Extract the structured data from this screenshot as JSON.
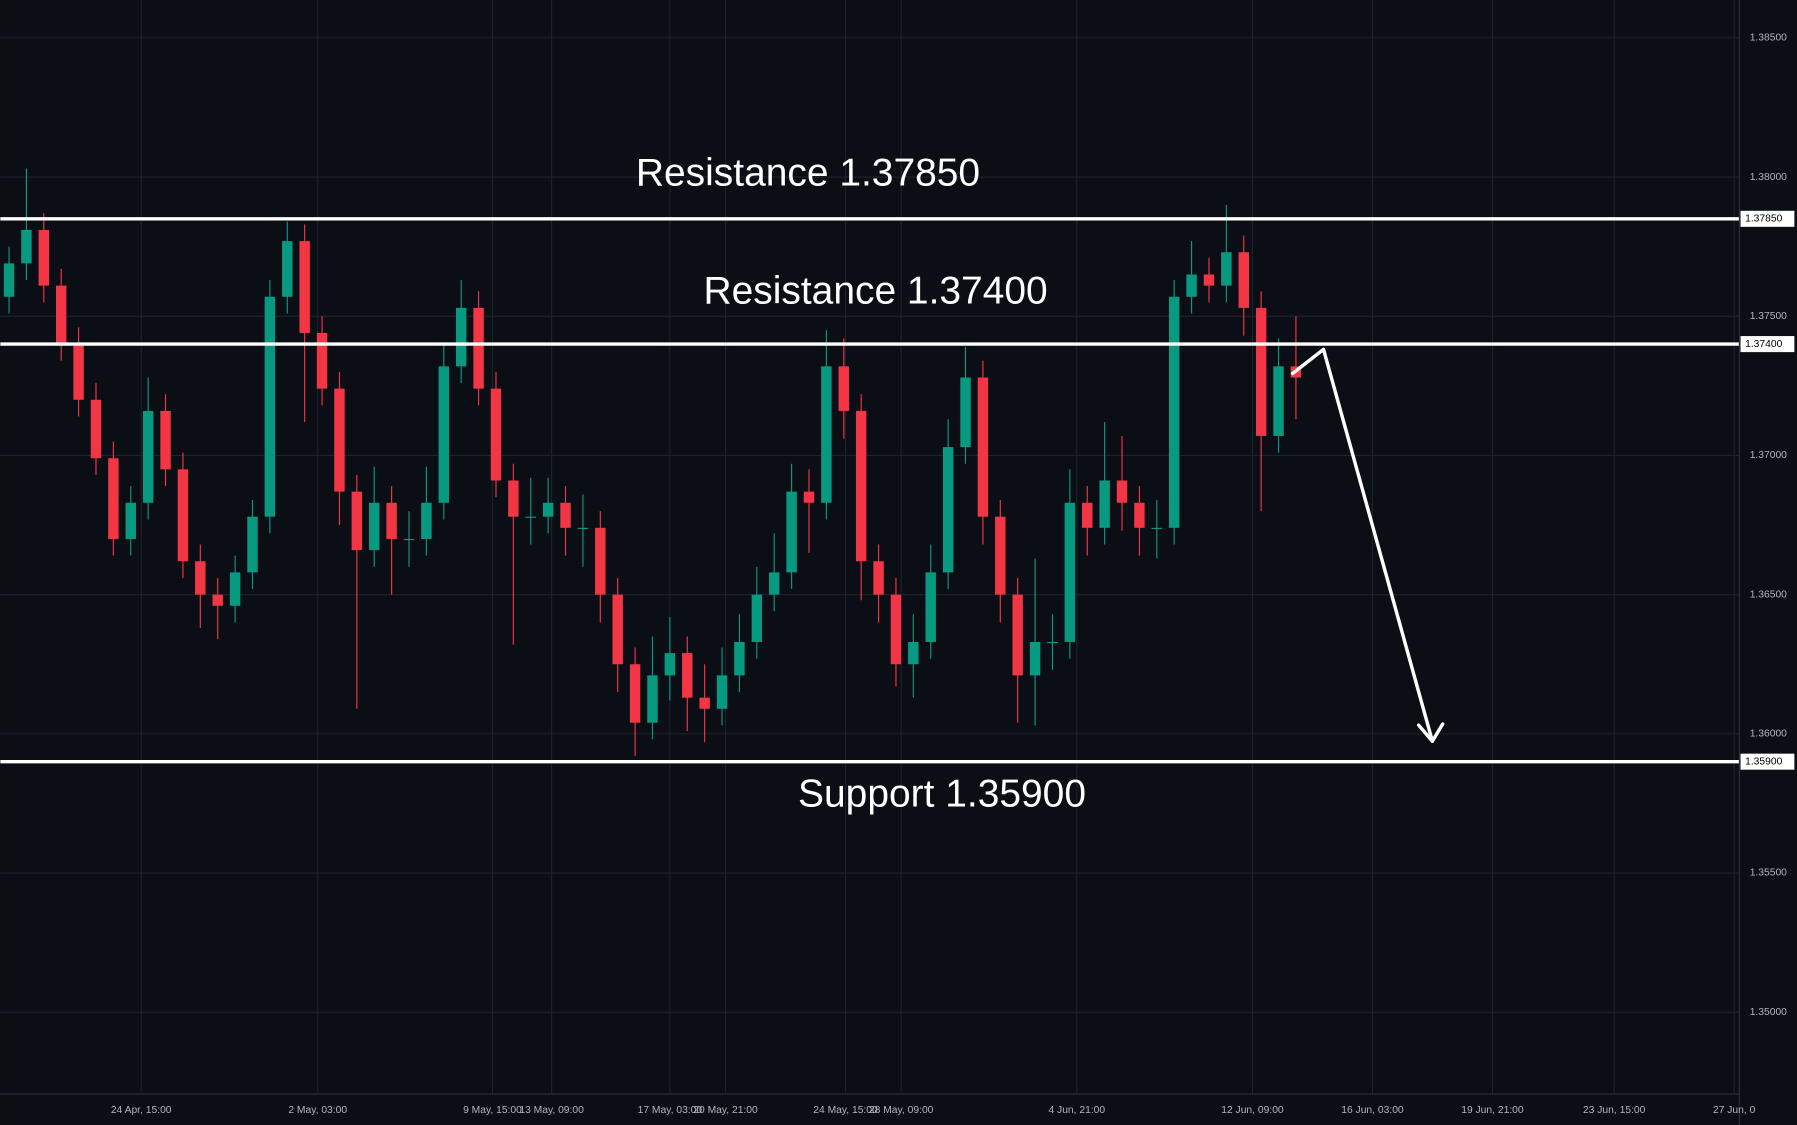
{
  "chart_data": {
    "type": "candlestick",
    "up_color": "#089981",
    "down_color": "#f23645",
    "grid": true,
    "xlim": [
      0,
      100
    ],
    "xticks": [
      {
        "value": 8.1,
        "label": "24 Apr, 15:00"
      },
      {
        "value": 18.25,
        "label": "2 May, 03:00"
      },
      {
        "value": 28.3,
        "label": "9 May, 15:00"
      },
      {
        "value": 31.7,
        "label": "13 May, 09:00"
      },
      {
        "value": 38.5,
        "label": "17 May, 03:00"
      },
      {
        "value": 41.7,
        "label": "20 May, 21:00"
      },
      {
        "value": 48.6,
        "label": "24 May, 15:00"
      },
      {
        "value": 51.8,
        "label": "28 May, 09:00"
      },
      {
        "value": 61.9,
        "label": "4 Jun, 21:00"
      },
      {
        "value": 72.0,
        "label": "12 Jun, 09:00"
      },
      {
        "value": 78.9,
        "label": "16 Jun, 03:00"
      },
      {
        "value": 85.8,
        "label": "19 Jun, 21:00"
      },
      {
        "value": 92.8,
        "label": "23 Jun, 15:00"
      },
      {
        "value": 99.7,
        "label": "27 Jun, 0"
      }
    ],
    "ylim": [
      1.34706,
      1.38636
    ],
    "yticks": [
      {
        "value": 1.35,
        "label": "1.35000"
      },
      {
        "value": 1.355,
        "label": "1.35500"
      },
      {
        "value": 1.36,
        "label": "1.36000"
      },
      {
        "value": 1.365,
        "label": "1.36500"
      },
      {
        "value": 1.37,
        "label": "1.37000"
      },
      {
        "value": 1.375,
        "label": "1.37500"
      },
      {
        "value": 1.38,
        "label": "1.38000"
      },
      {
        "value": 1.385,
        "label": "1.38500"
      }
    ],
    "levels": [
      {
        "value": 1.3785,
        "label": "1.37850"
      },
      {
        "value": 1.374,
        "label": "1.37400"
      },
      {
        "value": 1.359,
        "label": "1.35900"
      }
    ],
    "annotations": [
      "Resistance 1.37850",
      "Resistance 1.37400",
      "Support 1.35900"
    ],
    "open": [
      1.3757,
      1.3769,
      1.3781,
      1.3761,
      1.374,
      1.372,
      1.3699,
      1.367,
      1.3683,
      1.3716,
      1.3695,
      1.3662,
      1.365,
      1.3646,
      1.3658,
      1.3678,
      1.3757,
      1.3777,
      1.3744,
      1.3724,
      1.3687,
      1.3666,
      1.3683,
      1.367,
      1.367,
      1.3683,
      1.3732,
      1.3753,
      1.3724,
      1.3691,
      1.3678,
      1.3678,
      1.3683,
      1.3674,
      1.3674,
      1.365,
      1.3625,
      1.3604,
      1.3621,
      1.3629,
      1.3613,
      1.3609,
      1.3621,
      1.3633,
      1.365,
      1.3658,
      1.3687,
      1.3683,
      1.3732,
      1.3716,
      1.3662,
      1.365,
      1.3625,
      1.3633,
      1.3658,
      1.3703,
      1.3728,
      1.3678,
      1.365,
      1.3621,
      1.3633,
      1.3633,
      1.3683,
      1.3674,
      1.3691,
      1.3683,
      1.3674,
      1.3674,
      1.3757,
      1.3765,
      1.3761,
      1.3773,
      1.3753,
      1.3707,
      1.3732
    ],
    "high": [
      1.3775,
      1.3803,
      1.3787,
      1.3767,
      1.3746,
      1.3726,
      1.3705,
      1.3689,
      1.3728,
      1.3722,
      1.3701,
      1.3668,
      1.3656,
      1.3664,
      1.3684,
      1.3763,
      1.3784,
      1.3783,
      1.375,
      1.373,
      1.3693,
      1.3696,
      1.3689,
      1.368,
      1.3696,
      1.374,
      1.3763,
      1.3759,
      1.373,
      1.3697,
      1.3692,
      1.3692,
      1.3689,
      1.3686,
      1.368,
      1.3656,
      1.3631,
      1.3635,
      1.3642,
      1.3635,
      1.3625,
      1.3631,
      1.3643,
      1.366,
      1.3672,
      1.3697,
      1.3695,
      1.3745,
      1.3742,
      1.3722,
      1.3668,
      1.3656,
      1.3643,
      1.3668,
      1.3713,
      1.3739,
      1.3734,
      1.3684,
      1.3656,
      1.3663,
      1.3643,
      1.3695,
      1.3689,
      1.3712,
      1.3707,
      1.3689,
      1.3684,
      1.3763,
      1.3777,
      1.3771,
      1.379,
      1.3779,
      1.3759,
      1.3742,
      1.375
    ],
    "low": [
      1.3751,
      1.3763,
      1.3755,
      1.3734,
      1.3714,
      1.3693,
      1.3664,
      1.3664,
      1.3677,
      1.3689,
      1.3656,
      1.3638,
      1.3634,
      1.364,
      1.3652,
      1.3672,
      1.3751,
      1.3712,
      1.3718,
      1.3675,
      1.3609,
      1.366,
      1.365,
      1.366,
      1.3664,
      1.3677,
      1.3726,
      1.3718,
      1.3685,
      1.3632,
      1.3668,
      1.3672,
      1.3664,
      1.366,
      1.364,
      1.3615,
      1.3592,
      1.3598,
      1.3612,
      1.3601,
      1.3597,
      1.3603,
      1.3615,
      1.3627,
      1.3644,
      1.3652,
      1.3665,
      1.3677,
      1.3706,
      1.3648,
      1.364,
      1.3617,
      1.3613,
      1.3627,
      1.3652,
      1.3697,
      1.3668,
      1.364,
      1.3604,
      1.3603,
      1.3623,
      1.3627,
      1.3664,
      1.3668,
      1.3673,
      1.3664,
      1.3663,
      1.3668,
      1.3751,
      1.3755,
      1.3755,
      1.3743,
      1.368,
      1.3701,
      1.3713
    ],
    "close": [
      1.3769,
      1.3781,
      1.3761,
      1.374,
      1.372,
      1.3699,
      1.367,
      1.3683,
      1.3716,
      1.3695,
      1.3662,
      1.365,
      1.3646,
      1.3658,
      1.3678,
      1.3757,
      1.3777,
      1.3744,
      1.3724,
      1.3687,
      1.3666,
      1.3683,
      1.367,
      1.367,
      1.3683,
      1.3732,
      1.3753,
      1.3724,
      1.3691,
      1.3678,
      1.3678,
      1.3683,
      1.3674,
      1.3674,
      1.365,
      1.3625,
      1.3604,
      1.3621,
      1.3629,
      1.3613,
      1.3609,
      1.3621,
      1.3633,
      1.365,
      1.3658,
      1.3687,
      1.3683,
      1.3732,
      1.3716,
      1.3662,
      1.365,
      1.3625,
      1.3633,
      1.3658,
      1.3703,
      1.3728,
      1.3678,
      1.365,
      1.3621,
      1.3633,
      1.3633,
      1.3683,
      1.3674,
      1.3691,
      1.3683,
      1.3674,
      1.3674,
      1.3757,
      1.3765,
      1.3761,
      1.3773,
      1.3753,
      1.3707,
      1.3732,
      1.3728
    ]
  }
}
